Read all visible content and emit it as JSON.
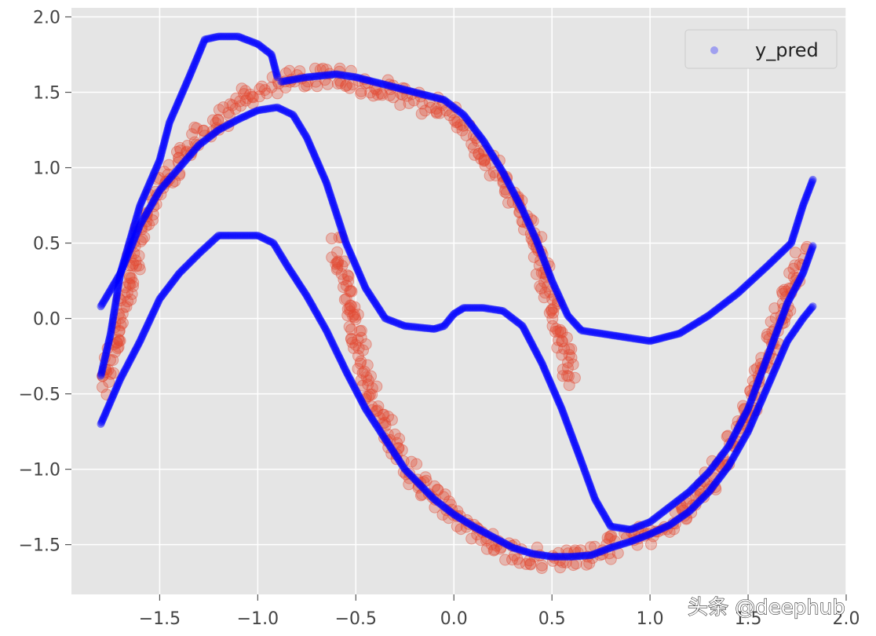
{
  "chart_data": {
    "type": "scatter",
    "title": "",
    "xlabel": "",
    "ylabel": "",
    "xlim": [
      -1.95,
      2.0
    ],
    "ylim": [
      -1.83,
      2.06
    ],
    "grid": true,
    "background": "#e5e5e5",
    "x_ticks": [
      {
        "value": -1.5,
        "label": "−1.5"
      },
      {
        "value": -1.0,
        "label": "−1.0"
      },
      {
        "value": -0.5,
        "label": "−0.5"
      },
      {
        "value": 0.0,
        "label": "0.0"
      },
      {
        "value": 0.5,
        "label": "0.5"
      },
      {
        "value": 1.0,
        "label": "1.0"
      },
      {
        "value": 1.5,
        "label": "1.5"
      },
      {
        "value": 2.0,
        "label": "2.0"
      }
    ],
    "y_ticks": [
      {
        "value": 2.0,
        "label": "2.0"
      },
      {
        "value": 1.5,
        "label": "1.5"
      },
      {
        "value": 1.0,
        "label": "1.0"
      },
      {
        "value": 0.5,
        "label": "0.5"
      },
      {
        "value": 0.0,
        "label": "0.0"
      },
      {
        "value": -0.5,
        "label": "−0.5"
      },
      {
        "value": -1.0,
        "label": "−1.0"
      },
      {
        "value": -1.5,
        "label": "−1.5"
      }
    ],
    "legend": {
      "placement": "top-right",
      "entries": [
        {
          "label": "y_pred",
          "color": "#3a3aff"
        }
      ]
    },
    "series": [
      {
        "role": "target",
        "color": "#e24a33",
        "curves": [
          [
            [
              -1.78,
              -0.45
            ],
            [
              -1.7,
              0.0
            ],
            [
              -1.6,
              0.55
            ],
            [
              -1.5,
              0.85
            ],
            [
              -1.4,
              1.05
            ],
            [
              -1.3,
              1.2
            ],
            [
              -1.2,
              1.32
            ],
            [
              -1.1,
              1.42
            ],
            [
              -1.0,
              1.5
            ],
            [
              -0.9,
              1.55
            ],
            [
              -0.8,
              1.58
            ],
            [
              -0.7,
              1.6
            ],
            [
              -0.6,
              1.6
            ],
            [
              -0.5,
              1.57
            ],
            [
              -0.4,
              1.53
            ],
            [
              -0.3,
              1.49
            ],
            [
              -0.2,
              1.45
            ],
            [
              -0.1,
              1.4
            ],
            [
              0.0,
              1.33
            ],
            [
              0.1,
              1.18
            ],
            [
              0.2,
              1.0
            ],
            [
              0.3,
              0.8
            ],
            [
              0.4,
              0.55
            ],
            [
              0.45,
              0.35
            ],
            [
              0.5,
              0.1
            ],
            [
              0.55,
              -0.15
            ],
            [
              0.6,
              -0.4
            ]
          ],
          [
            [
              -0.6,
              0.5
            ],
            [
              -0.55,
              0.2
            ],
            [
              -0.5,
              -0.1
            ],
            [
              -0.45,
              -0.4
            ],
            [
              -0.4,
              -0.6
            ],
            [
              -0.3,
              -0.85
            ],
            [
              -0.2,
              -1.05
            ],
            [
              -0.1,
              -1.2
            ],
            [
              0.0,
              -1.32
            ],
            [
              0.1,
              -1.42
            ],
            [
              0.2,
              -1.5
            ],
            [
              0.3,
              -1.55
            ],
            [
              0.4,
              -1.58
            ],
            [
              0.5,
              -1.6
            ],
            [
              0.6,
              -1.6
            ],
            [
              0.7,
              -1.57
            ],
            [
              0.8,
              -1.52
            ],
            [
              0.9,
              -1.47
            ],
            [
              1.0,
              -1.42
            ],
            [
              1.1,
              -1.35
            ],
            [
              1.2,
              -1.25
            ],
            [
              1.3,
              -1.1
            ],
            [
              1.4,
              -0.9
            ],
            [
              1.5,
              -0.6
            ],
            [
              1.6,
              -0.25
            ],
            [
              1.7,
              0.15
            ],
            [
              1.78,
              0.45
            ]
          ]
        ]
      },
      {
        "role": "y_pred",
        "name": "y_pred",
        "color": "#0000ff",
        "curves": [
          [
            [
              -1.8,
              0.08
            ],
            [
              -1.7,
              0.3
            ],
            [
              -1.6,
              0.75
            ],
            [
              -1.5,
              1.05
            ],
            [
              -1.45,
              1.3
            ],
            [
              -1.35,
              1.6
            ],
            [
              -1.27,
              1.85
            ],
            [
              -1.2,
              1.87
            ],
            [
              -1.1,
              1.87
            ],
            [
              -1.0,
              1.82
            ],
            [
              -0.93,
              1.75
            ],
            [
              -0.9,
              1.6
            ]
          ],
          [
            [
              -0.88,
              1.57
            ],
            [
              -0.75,
              1.6
            ],
            [
              -0.6,
              1.62
            ],
            [
              -0.5,
              1.6
            ],
            [
              -0.35,
              1.55
            ],
            [
              -0.2,
              1.5
            ],
            [
              -0.05,
              1.45
            ],
            [
              0.05,
              1.35
            ],
            [
              0.15,
              1.18
            ],
            [
              0.25,
              0.97
            ],
            [
              0.35,
              0.72
            ],
            [
              0.42,
              0.52
            ],
            [
              0.5,
              0.25
            ],
            [
              0.58,
              0.02
            ],
            [
              0.65,
              -0.08
            ],
            [
              0.75,
              -0.1
            ],
            [
              0.9,
              -0.13
            ],
            [
              1.0,
              -0.15
            ],
            [
              1.15,
              -0.1
            ],
            [
              1.3,
              0.02
            ],
            [
              1.45,
              0.17
            ],
            [
              1.6,
              0.35
            ],
            [
              1.72,
              0.5
            ],
            [
              1.78,
              0.75
            ],
            [
              1.83,
              0.92
            ]
          ],
          [
            [
              -1.8,
              -0.38
            ],
            [
              -1.75,
              -0.1
            ],
            [
              -1.7,
              0.3
            ],
            [
              -1.6,
              0.62
            ],
            [
              -1.5,
              0.85
            ],
            [
              -1.4,
              1.0
            ],
            [
              -1.3,
              1.15
            ],
            [
              -1.2,
              1.25
            ],
            [
              -1.1,
              1.32
            ],
            [
              -1.0,
              1.38
            ],
            [
              -0.9,
              1.4
            ],
            [
              -0.82,
              1.35
            ],
            [
              -0.75,
              1.2
            ],
            [
              -0.65,
              0.9
            ],
            [
              -0.55,
              0.5
            ],
            [
              -0.45,
              0.2
            ],
            [
              -0.35,
              0.0
            ],
            [
              -0.25,
              -0.05
            ],
            [
              -0.1,
              -0.07
            ],
            [
              -0.05,
              -0.05
            ],
            [
              0.0,
              0.03
            ],
            [
              0.05,
              0.07
            ],
            [
              0.15,
              0.07
            ],
            [
              0.25,
              0.05
            ],
            [
              0.35,
              -0.05
            ],
            [
              0.45,
              -0.3
            ],
            [
              0.55,
              -0.6
            ],
            [
              0.65,
              -0.95
            ],
            [
              0.72,
              -1.2
            ],
            [
              0.8,
              -1.38
            ],
            [
              0.9,
              -1.4
            ],
            [
              1.0,
              -1.35
            ],
            [
              1.1,
              -1.25
            ],
            [
              1.2,
              -1.15
            ],
            [
              1.3,
              -1.02
            ],
            [
              1.4,
              -0.85
            ],
            [
              1.5,
              -0.6
            ],
            [
              1.6,
              -0.25
            ],
            [
              1.7,
              0.1
            ],
            [
              1.78,
              0.3
            ],
            [
              1.83,
              0.48
            ]
          ],
          [
            [
              -1.8,
              -0.7
            ],
            [
              -1.7,
              -0.4
            ],
            [
              -1.6,
              -0.15
            ],
            [
              -1.5,
              0.13
            ],
            [
              -1.4,
              0.3
            ],
            [
              -1.3,
              0.43
            ],
            [
              -1.2,
              0.55
            ],
            [
              -1.0,
              0.55
            ],
            [
              -0.92,
              0.5
            ],
            [
              -0.85,
              0.35
            ],
            [
              -0.75,
              0.15
            ],
            [
              -0.65,
              -0.08
            ],
            [
              -0.55,
              -0.35
            ],
            [
              -0.45,
              -0.6
            ],
            [
              -0.35,
              -0.8
            ],
            [
              -0.25,
              -1.0
            ],
            [
              -0.1,
              -1.2
            ],
            [
              0.0,
              -1.3
            ],
            [
              0.1,
              -1.38
            ],
            [
              0.2,
              -1.45
            ],
            [
              0.3,
              -1.52
            ],
            [
              0.4,
              -1.56
            ],
            [
              0.5,
              -1.58
            ],
            [
              0.6,
              -1.58
            ],
            [
              0.7,
              -1.57
            ],
            [
              0.8,
              -1.52
            ],
            [
              0.9,
              -1.48
            ],
            [
              1.0,
              -1.43
            ],
            [
              1.1,
              -1.37
            ],
            [
              1.2,
              -1.28
            ],
            [
              1.3,
              -1.15
            ],
            [
              1.4,
              -0.98
            ],
            [
              1.5,
              -0.75
            ],
            [
              1.6,
              -0.45
            ],
            [
              1.7,
              -0.15
            ],
            [
              1.78,
              0.0
            ],
            [
              1.83,
              0.08
            ]
          ]
        ]
      }
    ]
  },
  "watermark": {
    "text": "头条 @deephub"
  }
}
